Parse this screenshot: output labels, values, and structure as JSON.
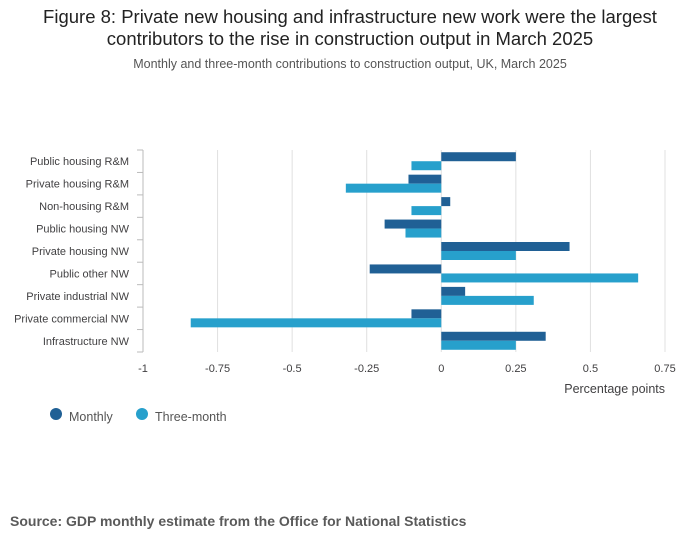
{
  "title": "Figure 8: Private new housing and infrastructure new work were the largest contributors to the rise in construction output in March 2025",
  "subtitle": "Monthly and three-month contributions to construction output, UK, March 2025",
  "source": "Source: GDP monthly estimate from the Office for National Statistics",
  "colors": {
    "monthly": "#206095",
    "three_month": "#27a0cc",
    "grid": "#e0e0e0",
    "axis": "#bbbbbb"
  },
  "chart_data": {
    "type": "bar",
    "orientation": "horizontal",
    "categories": [
      "Public housing R&M",
      "Private housing R&M",
      "Non-housing R&M",
      "Public housing NW",
      "Private housing NW",
      "Public other NW",
      "Private industrial NW",
      "Private commercial NW",
      "Infrastructure NW"
    ],
    "series": [
      {
        "name": "Monthly",
        "values": [
          0.25,
          -0.11,
          0.03,
          -0.19,
          0.43,
          -0.24,
          0.08,
          -0.1,
          0.35
        ]
      },
      {
        "name": "Three-month",
        "values": [
          -0.1,
          -0.32,
          -0.1,
          -0.12,
          0.25,
          0.66,
          0.31,
          -0.84,
          0.25
        ]
      }
    ],
    "xlabel": "Percentage points",
    "ylabel": "",
    "xlim": [
      -1,
      0.75
    ],
    "xticks": [
      -1,
      -0.75,
      -0.5,
      -0.25,
      0,
      0.25,
      0.5,
      0.75
    ],
    "xtick_labels": [
      "-1",
      "-0.75",
      "-0.5",
      "-0.25",
      "0",
      "0.25",
      "0.5",
      "0.75"
    ],
    "legend_position": "bottom-left"
  }
}
